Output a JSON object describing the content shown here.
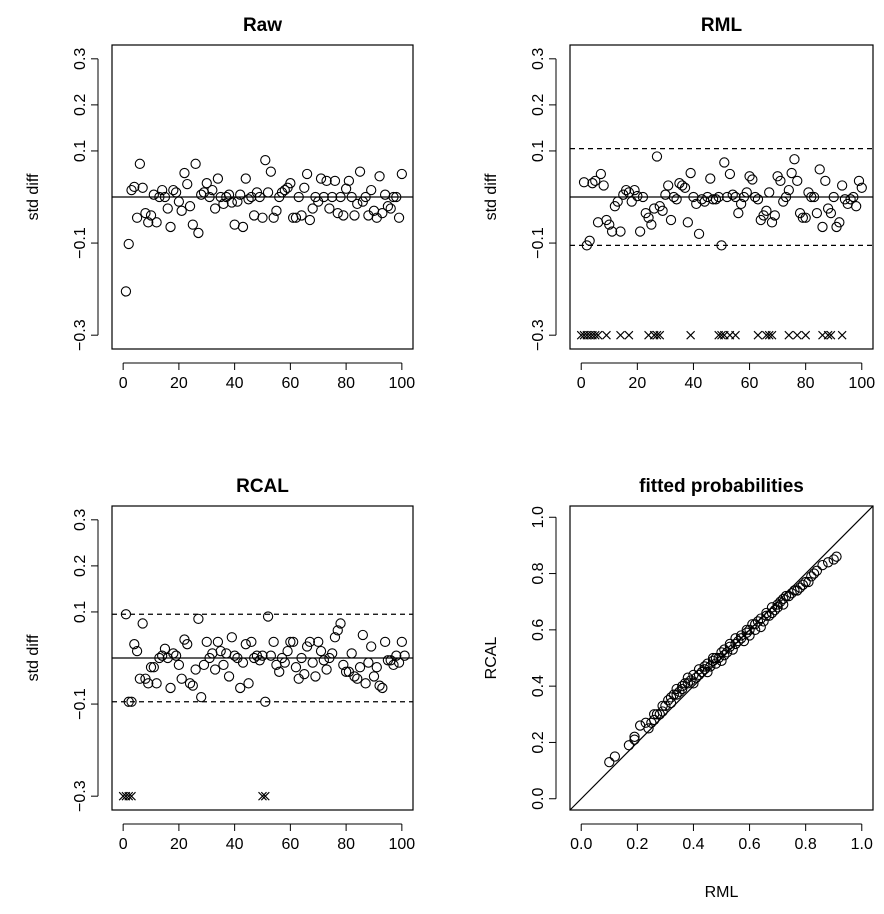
{
  "chart_data": [
    {
      "id": "raw",
      "type": "scatter",
      "title": "Raw",
      "xlabel": "",
      "ylabel": "std diff",
      "xlim": [
        -4,
        104
      ],
      "ylim": [
        -0.33,
        0.33
      ],
      "x_ticks": [
        0,
        20,
        40,
        60,
        80,
        100
      ],
      "y_ticks": [
        -0.3,
        -0.1,
        0.1,
        0.2,
        0.3
      ],
      "x_tick_labels": [
        "0",
        "20",
        "40",
        "60",
        "80",
        "100"
      ],
      "y_tick_labels": [
        "−0.3",
        "−0.1",
        "0.1",
        "0.2",
        "0.3"
      ],
      "ref_lines": [
        0
      ],
      "dashed_lines": [],
      "points": [
        0.0,
        -0.205,
        -0.102,
        0.015,
        0.022,
        -0.045,
        0.072,
        0.02,
        -0.035,
        -0.055,
        -0.04,
        0.005,
        -0.055,
        0.0,
        0.015,
        0.0,
        -0.025,
        -0.065,
        0.015,
        0.01,
        -0.01,
        -0.03,
        0.052,
        0.028,
        -0.02,
        -0.06,
        0.072,
        -0.078,
        0.005,
        0.01,
        0.03,
        0.0,
        0.015,
        -0.025,
        0.04,
        0.0,
        -0.015,
        0.0,
        0.005,
        -0.012,
        -0.06,
        -0.01,
        0.005,
        -0.065,
        0.04,
        -0.005,
        0.0,
        -0.04,
        0.01,
        0.0,
        -0.045,
        0.08,
        0.01,
        0.055,
        -0.045,
        -0.03,
        0.0,
        0.01,
        0.015,
        0.02,
        0.03,
        -0.045,
        -0.045,
        0.0,
        -0.04,
        0.02,
        0.05,
        -0.05,
        -0.025,
        0.0,
        -0.01,
        0.04,
        0.0,
        0.035,
        -0.025,
        0.0,
        0.035,
        -0.035,
        0.0,
        -0.04,
        0.018,
        0.035,
        0.0,
        -0.04,
        -0.015,
        0.055,
        -0.01,
        0.0,
        -0.04,
        0.015,
        -0.03,
        -0.045,
        0.045,
        -0.035,
        0.005,
        -0.02,
        -0.025,
        0.0,
        0.0,
        -0.045,
        0.05
      ],
      "markers": []
    },
    {
      "id": "rml",
      "type": "scatter",
      "title": "RML",
      "xlabel": "",
      "ylabel": "std diff",
      "xlim": [
        -4,
        104
      ],
      "ylim": [
        -0.33,
        0.33
      ],
      "x_ticks": [
        0,
        20,
        40,
        60,
        80,
        100
      ],
      "y_ticks": [
        -0.3,
        -0.1,
        0.1,
        0.2,
        0.3
      ],
      "x_tick_labels": [
        "0",
        "20",
        "40",
        "60",
        "80",
        "100"
      ],
      "y_tick_labels": [
        "−0.3",
        "−0.1",
        "0.1",
        "0.2",
        "0.3"
      ],
      "ref_lines": [
        0
      ],
      "dashed_lines": [
        -0.105,
        0.105
      ],
      "points": [
        0.0,
        0.032,
        -0.105,
        -0.095,
        0.03,
        0.035,
        -0.055,
        0.05,
        0.025,
        -0.05,
        -0.06,
        -0.075,
        -0.02,
        -0.01,
        -0.075,
        0.005,
        0.015,
        0.01,
        -0.01,
        0.015,
        0.002,
        -0.075,
        0.0,
        -0.035,
        -0.045,
        -0.06,
        -0.025,
        0.088,
        -0.02,
        -0.03,
        0.005,
        0.025,
        -0.05,
        0.0,
        -0.005,
        0.03,
        0.025,
        0.02,
        -0.055,
        0.052,
        0.0,
        -0.015,
        -0.08,
        -0.005,
        -0.01,
        0.0,
        0.04,
        -0.005,
        -0.005,
        0.0,
        -0.105,
        0.075,
        0.0,
        0.05,
        0.005,
        0.0,
        -0.035,
        -0.015,
        0.0,
        0.01,
        0.045,
        0.038,
        0.0,
        -0.005,
        -0.05,
        -0.04,
        -0.03,
        0.01,
        -0.055,
        -0.04,
        0.045,
        0.035,
        -0.01,
        0.0,
        0.015,
        0.052,
        0.082,
        0.035,
        -0.035,
        -0.045,
        -0.045,
        0.01,
        0.0,
        0.0,
        -0.035,
        0.06,
        -0.065,
        0.035,
        -0.025,
        -0.035,
        0.0,
        -0.065,
        -0.055,
        0.025,
        -0.005,
        -0.015,
        -0.005,
        0.0,
        -0.02,
        0.035,
        0.02
      ],
      "markers": [
        0,
        1,
        2,
        3,
        4,
        5,
        6,
        9,
        14,
        17,
        24,
        26,
        27,
        28,
        39,
        49,
        50,
        51,
        53,
        55,
        63,
        66,
        67,
        68,
        74,
        77,
        80,
        86,
        88,
        89,
        93
      ]
    },
    {
      "id": "rcal",
      "type": "scatter",
      "title": "RCAL",
      "xlabel": "",
      "ylabel": "std diff",
      "xlim": [
        -4,
        104
      ],
      "ylim": [
        -0.33,
        0.33
      ],
      "x_ticks": [
        0,
        20,
        40,
        60,
        80,
        100
      ],
      "y_ticks": [
        -0.3,
        -0.1,
        0.1,
        0.2,
        0.3
      ],
      "x_tick_labels": [
        "0",
        "20",
        "40",
        "60",
        "80",
        "100"
      ],
      "y_tick_labels": [
        "−0.3",
        "−0.1",
        "0.1",
        "0.2",
        "0.3"
      ],
      "ref_lines": [
        0
      ],
      "dashed_lines": [
        -0.095,
        0.095
      ],
      "points": [
        0.0,
        0.095,
        -0.095,
        -0.095,
        0.03,
        0.015,
        -0.045,
        0.075,
        -0.045,
        -0.055,
        -0.02,
        -0.02,
        -0.055,
        0.0,
        0.005,
        0.02,
        0.0,
        -0.065,
        0.01,
        0.005,
        -0.015,
        -0.045,
        0.04,
        0.03,
        -0.055,
        -0.06,
        -0.025,
        0.085,
        -0.085,
        -0.015,
        0.035,
        0.0,
        0.01,
        -0.025,
        0.035,
        0.015,
        -0.015,
        0.01,
        -0.04,
        0.045,
        0.005,
        0.0,
        -0.065,
        -0.01,
        0.03,
        -0.055,
        0.035,
        0.0,
        0.005,
        -0.005,
        0.005,
        -0.095,
        0.09,
        0.005,
        0.035,
        -0.015,
        -0.03,
        0.0,
        -0.01,
        0.015,
        0.035,
        0.035,
        -0.02,
        -0.045,
        0.0,
        -0.035,
        0.025,
        0.035,
        -0.01,
        -0.04,
        0.035,
        0.015,
        -0.005,
        -0.025,
        0.0,
        0.01,
        0.045,
        0.06,
        0.075,
        -0.015,
        -0.03,
        -0.03,
        0.01,
        -0.04,
        -0.045,
        -0.02,
        0.05,
        -0.055,
        -0.01,
        0.025,
        -0.04,
        -0.02,
        -0.06,
        -0.065,
        0.035,
        -0.005,
        -0.005,
        -0.015,
        0.005,
        -0.01,
        0.035,
        0.005
      ],
      "markers": [
        0,
        1,
        2,
        3,
        50,
        51
      ]
    },
    {
      "id": "fitted",
      "type": "scatter",
      "title": "fitted probabilities",
      "xlabel": "RML",
      "ylabel": "RCAL",
      "xlim": [
        -0.04,
        1.04
      ],
      "ylim": [
        -0.04,
        1.04
      ],
      "x_ticks": [
        0.0,
        0.2,
        0.4,
        0.6,
        0.8,
        1.0
      ],
      "y_ticks": [
        0.0,
        0.2,
        0.4,
        0.6,
        0.8,
        1.0
      ],
      "x_tick_labels": [
        "0.0",
        "0.2",
        "0.4",
        "0.6",
        "0.8",
        "1.0"
      ],
      "y_tick_labels": [
        "0.0",
        "0.2",
        "0.4",
        "0.6",
        "0.8",
        "1.0"
      ],
      "identity_line": true,
      "scatter": {
        "x": [
          0.1,
          0.12,
          0.17,
          0.19,
          0.19,
          0.21,
          0.23,
          0.24,
          0.25,
          0.26,
          0.26,
          0.27,
          0.28,
          0.29,
          0.29,
          0.3,
          0.31,
          0.32,
          0.32,
          0.33,
          0.34,
          0.34,
          0.35,
          0.36,
          0.36,
          0.37,
          0.38,
          0.38,
          0.39,
          0.4,
          0.4,
          0.41,
          0.42,
          0.42,
          0.43,
          0.44,
          0.44,
          0.45,
          0.45,
          0.46,
          0.47,
          0.47,
          0.48,
          0.48,
          0.49,
          0.5,
          0.5,
          0.51,
          0.51,
          0.52,
          0.53,
          0.53,
          0.54,
          0.55,
          0.55,
          0.56,
          0.57,
          0.57,
          0.58,
          0.59,
          0.59,
          0.6,
          0.6,
          0.61,
          0.62,
          0.62,
          0.63,
          0.64,
          0.64,
          0.65,
          0.66,
          0.66,
          0.67,
          0.68,
          0.68,
          0.69,
          0.7,
          0.7,
          0.71,
          0.72,
          0.72,
          0.73,
          0.74,
          0.75,
          0.76,
          0.77,
          0.78,
          0.79,
          0.8,
          0.81,
          0.82,
          0.83,
          0.84,
          0.86,
          0.88,
          0.9,
          0.91
        ],
        "y": [
          0.13,
          0.15,
          0.19,
          0.21,
          0.22,
          0.26,
          0.27,
          0.25,
          0.27,
          0.28,
          0.3,
          0.3,
          0.3,
          0.31,
          0.33,
          0.33,
          0.35,
          0.34,
          0.36,
          0.37,
          0.37,
          0.39,
          0.38,
          0.39,
          0.4,
          0.41,
          0.41,
          0.43,
          0.42,
          0.41,
          0.44,
          0.43,
          0.44,
          0.46,
          0.45,
          0.46,
          0.47,
          0.45,
          0.48,
          0.47,
          0.49,
          0.5,
          0.48,
          0.5,
          0.5,
          0.49,
          0.52,
          0.51,
          0.53,
          0.52,
          0.54,
          0.55,
          0.53,
          0.55,
          0.57,
          0.56,
          0.57,
          0.58,
          0.56,
          0.59,
          0.6,
          0.58,
          0.6,
          0.62,
          0.6,
          0.62,
          0.63,
          0.61,
          0.64,
          0.63,
          0.65,
          0.66,
          0.65,
          0.66,
          0.68,
          0.67,
          0.68,
          0.69,
          0.7,
          0.69,
          0.71,
          0.72,
          0.72,
          0.73,
          0.74,
          0.74,
          0.75,
          0.76,
          0.77,
          0.77,
          0.79,
          0.8,
          0.81,
          0.83,
          0.84,
          0.85,
          0.86
        ]
      }
    }
  ]
}
